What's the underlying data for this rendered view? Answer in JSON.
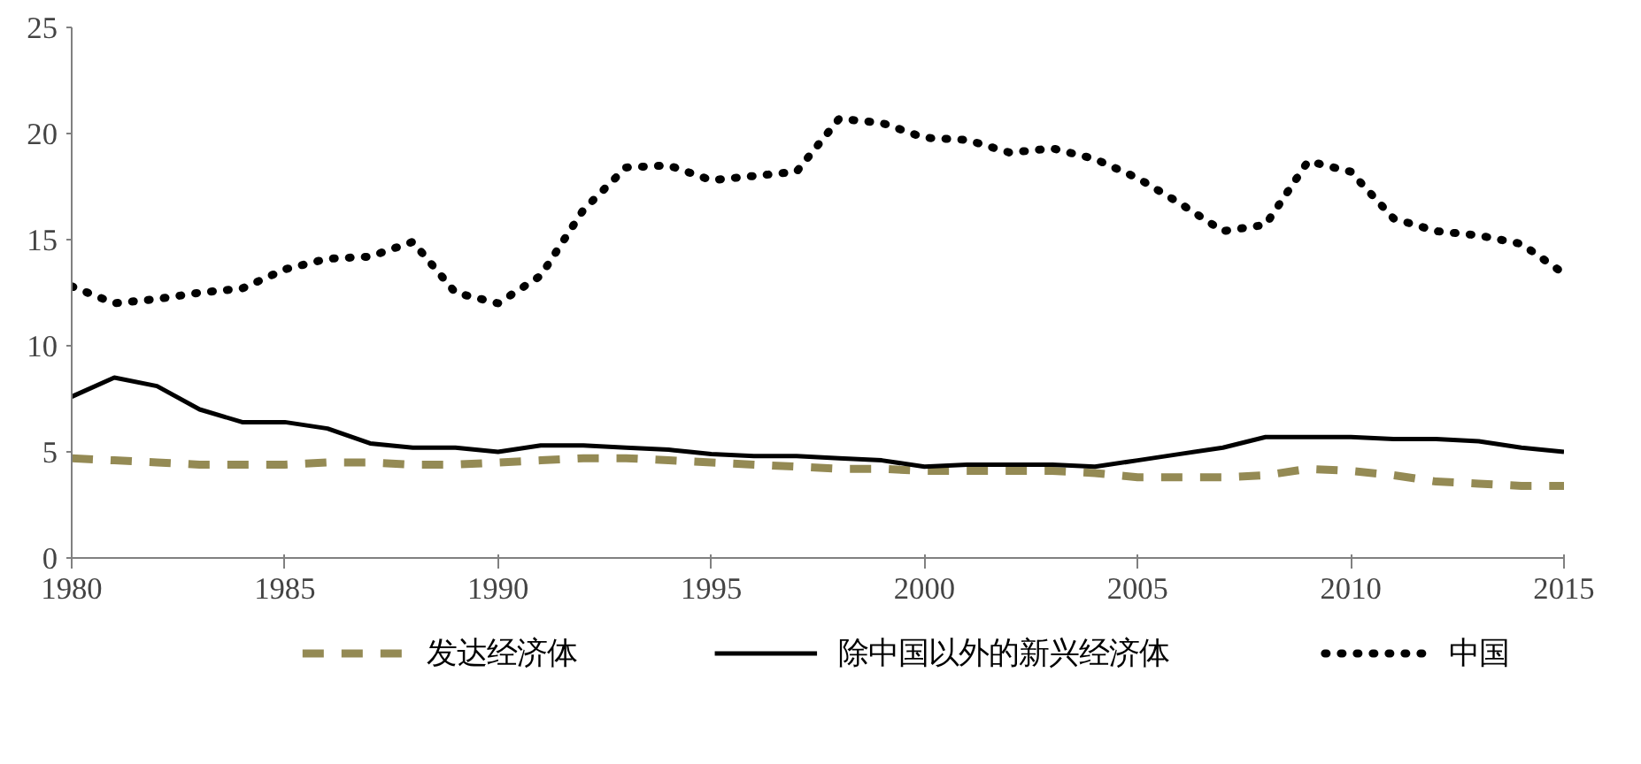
{
  "chart_data": {
    "type": "line",
    "x": [
      1980,
      1981,
      1982,
      1983,
      1984,
      1985,
      1986,
      1987,
      1988,
      1989,
      1990,
      1991,
      1992,
      1993,
      1994,
      1995,
      1996,
      1997,
      1998,
      1999,
      2000,
      2001,
      2002,
      2003,
      2004,
      2005,
      2006,
      2007,
      2008,
      2009,
      2010,
      2011,
      2012,
      2013,
      2014,
      2015
    ],
    "series": [
      {
        "name": "发达经济体",
        "color": "#948a54",
        "line_style": "dashed",
        "values": [
          4.7,
          4.6,
          4.5,
          4.4,
          4.4,
          4.4,
          4.5,
          4.5,
          4.4,
          4.4,
          4.5,
          4.6,
          4.7,
          4.7,
          4.6,
          4.5,
          4.4,
          4.3,
          4.2,
          4.2,
          4.1,
          4.1,
          4.1,
          4.1,
          4.0,
          3.8,
          3.8,
          3.8,
          3.9,
          4.2,
          4.1,
          3.9,
          3.6,
          3.5,
          3.4,
          3.4
        ]
      },
      {
        "name": "除中国以外的新兴经济体",
        "color": "#000000",
        "line_style": "solid",
        "values": [
          7.6,
          8.5,
          8.1,
          7.0,
          6.4,
          6.4,
          6.1,
          5.4,
          5.2,
          5.2,
          5.0,
          5.3,
          5.3,
          5.2,
          5.1,
          4.9,
          4.8,
          4.8,
          4.7,
          4.6,
          4.3,
          4.4,
          4.4,
          4.4,
          4.3,
          4.6,
          4.9,
          5.2,
          5.7,
          5.7,
          5.7,
          5.6,
          5.6,
          5.5,
          5.2,
          5.0
        ]
      },
      {
        "name": "中国",
        "color": "#010101",
        "line_style": "dotted",
        "values": [
          12.8,
          12.0,
          12.2,
          12.5,
          12.7,
          13.6,
          14.1,
          14.2,
          14.9,
          12.5,
          12.0,
          13.3,
          16.4,
          18.4,
          18.5,
          17.8,
          18.0,
          18.2,
          20.7,
          20.5,
          19.8,
          19.7,
          19.1,
          19.3,
          18.8,
          17.9,
          16.7,
          15.4,
          15.7,
          18.7,
          18.2,
          16.0,
          15.4,
          15.2,
          14.8,
          13.4
        ]
      }
    ],
    "xlim": [
      1980,
      2015
    ],
    "xticks": [
      1980,
      1985,
      1990,
      1995,
      2000,
      2005,
      2010,
      2015
    ],
    "ylim": [
      0,
      25
    ],
    "yticks": [
      0,
      5,
      10,
      15,
      20,
      25
    ],
    "grid": false,
    "legend": "bottom"
  }
}
